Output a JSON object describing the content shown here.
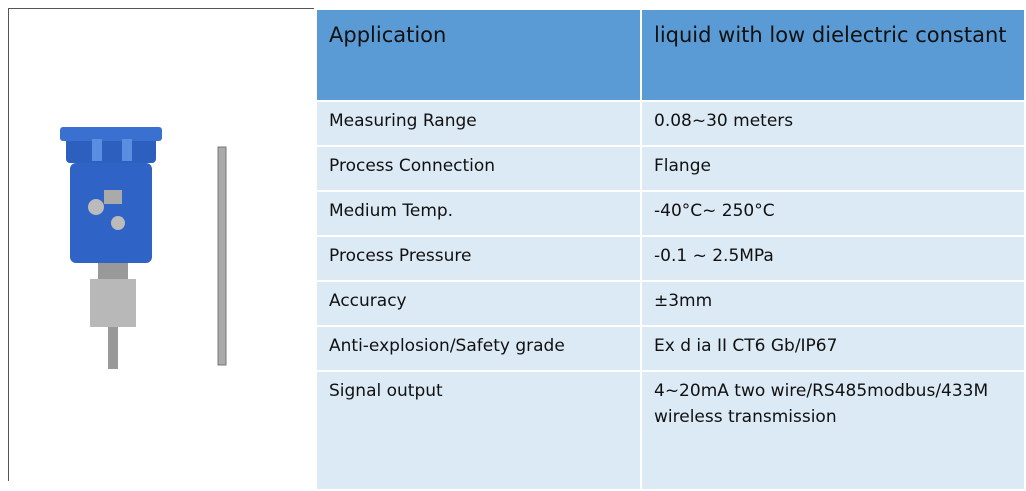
{
  "table": {
    "header": [
      "Application",
      "liquid with low dielectric constant"
    ],
    "rows": [
      [
        "Measuring Range",
        "0.08~30 meters"
      ],
      [
        "Process Connection",
        "Flange"
      ],
      [
        "Medium Temp.",
        "-40°C~ 250°C"
      ],
      [
        "Process Pressure",
        "-0.1 ~ 2.5MPa"
      ],
      [
        "Accuracy",
        "±3mm"
      ],
      [
        "Anti-explosion/Safety grade",
        "Ex d ia II CT6 Gb/IP67"
      ],
      [
        "Signal output",
        "4~20mA two wire/RS485modbus/433M wireless transmission"
      ]
    ]
  }
}
